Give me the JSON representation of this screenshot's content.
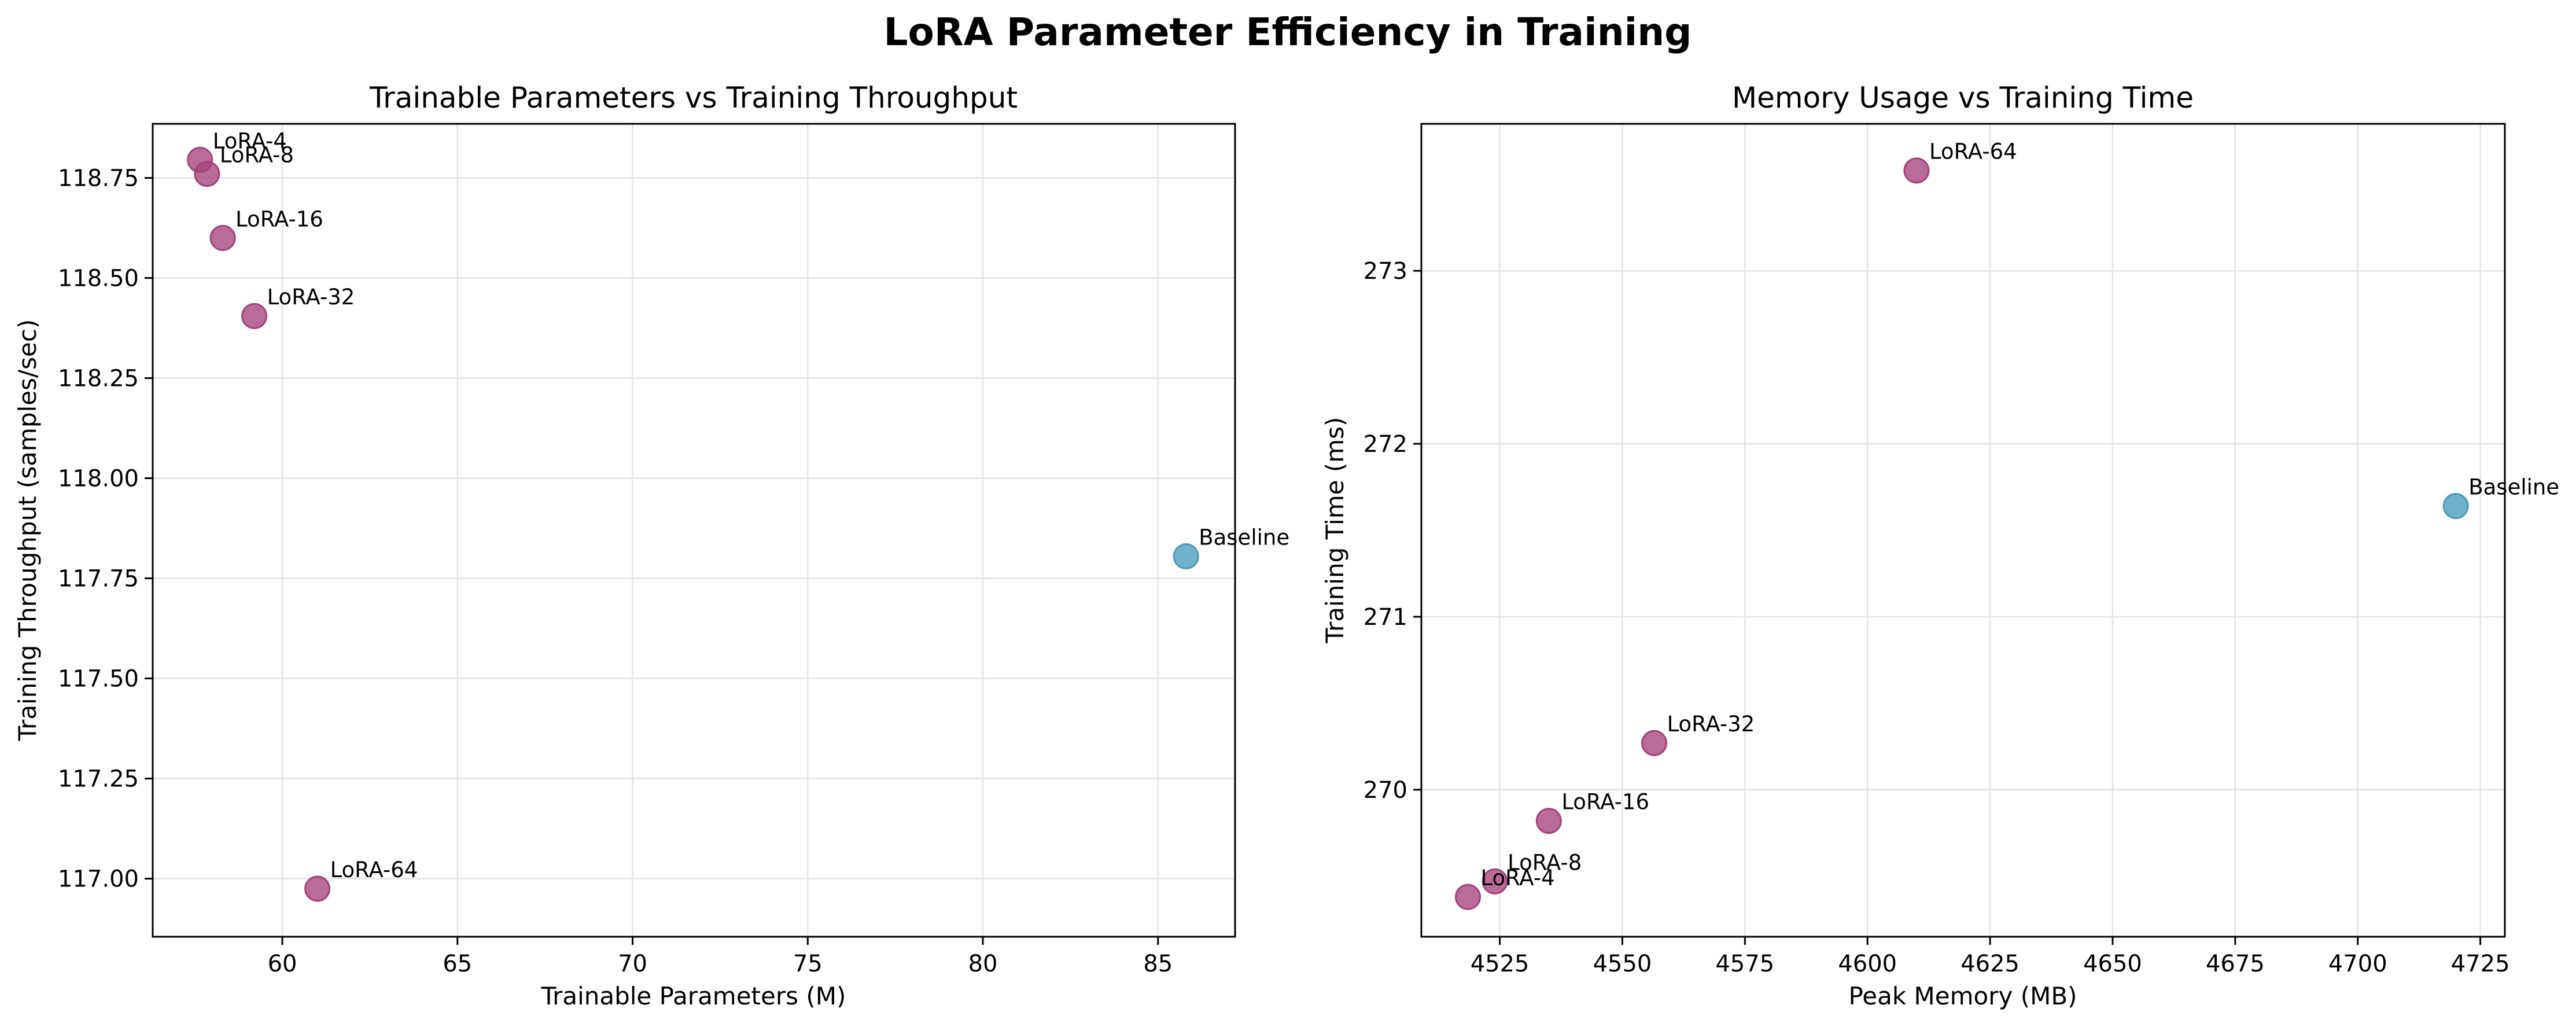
{
  "figure_title": "LoRA Parameter Efficiency in Training",
  "colors": {
    "baseline": "#4a9bbd",
    "lora": "#a5427a"
  },
  "chart_data": [
    {
      "type": "scatter",
      "title": "Trainable Parameters vs Training Throughput",
      "xlabel": "Trainable Parameters (M)",
      "ylabel": "Training Throughput (samples/sec)",
      "xlim": [
        56.3,
        87.2
      ],
      "ylim": [
        116.855,
        118.885
      ],
      "xticks": [
        60,
        65,
        70,
        75,
        80,
        85
      ],
      "yticks": [
        117.0,
        117.25,
        117.5,
        117.75,
        118.0,
        118.25,
        118.5,
        118.75
      ],
      "ytick_labels": [
        "117.00",
        "117.25",
        "117.50",
        "117.75",
        "118.00",
        "118.25",
        "118.50",
        "118.75"
      ],
      "grid": true,
      "points": [
        {
          "label": "Baseline",
          "x": 85.8,
          "y": 117.805,
          "group": "baseline"
        },
        {
          "label": "LoRA-4",
          "x": 57.65,
          "y": 118.795,
          "group": "lora"
        },
        {
          "label": "LoRA-8",
          "x": 57.85,
          "y": 118.76,
          "group": "lora"
        },
        {
          "label": "LoRA-16",
          "x": 58.3,
          "y": 118.6,
          "group": "lora"
        },
        {
          "label": "LoRA-32",
          "x": 59.2,
          "y": 118.405,
          "group": "lora"
        },
        {
          "label": "LoRA-64",
          "x": 61.0,
          "y": 116.975,
          "group": "lora"
        }
      ]
    },
    {
      "type": "scatter",
      "title": "Memory Usage vs Training Time",
      "xlabel": "Peak Memory (MB)",
      "ylabel": "Training Time (ms)",
      "xlim": [
        4509,
        4730
      ],
      "ylim": [
        269.15,
        273.85
      ],
      "xticks": [
        4525,
        4550,
        4575,
        4600,
        4625,
        4650,
        4675,
        4700,
        4725
      ],
      "yticks": [
        270,
        271,
        272,
        273
      ],
      "ytick_labels": [
        "270",
        "271",
        "272",
        "273"
      ],
      "grid": true,
      "points": [
        {
          "label": "Baseline",
          "x": 4720,
          "y": 271.64,
          "group": "baseline"
        },
        {
          "label": "LoRA-4",
          "x": 4518.5,
          "y": 269.38,
          "group": "lora"
        },
        {
          "label": "LoRA-8",
          "x": 4524,
          "y": 269.47,
          "group": "lora"
        },
        {
          "label": "LoRA-16",
          "x": 4535,
          "y": 269.82,
          "group": "lora"
        },
        {
          "label": "LoRA-32",
          "x": 4556.5,
          "y": 270.27,
          "group": "lora"
        },
        {
          "label": "LoRA-64",
          "x": 4610,
          "y": 273.58,
          "group": "lora"
        }
      ]
    }
  ]
}
